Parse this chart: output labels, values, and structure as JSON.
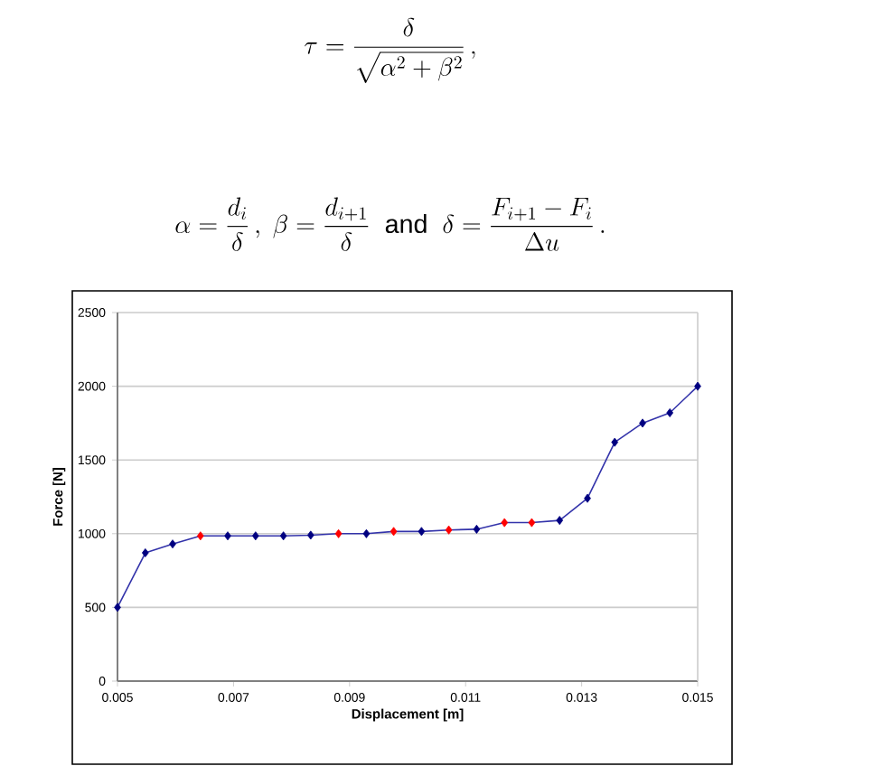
{
  "chart_data": {
    "type": "line",
    "xlabel": "Displacement [m]",
    "ylabel": "Force [N]",
    "x": [
      0.005,
      0.00548,
      0.00595,
      0.00643,
      0.0069,
      0.00738,
      0.00786,
      0.00833,
      0.00881,
      0.00929,
      0.00976,
      0.01024,
      0.01071,
      0.01119,
      0.01167,
      0.01214,
      0.01262,
      0.0131,
      0.01357,
      0.01405,
      0.01452,
      0.015
    ],
    "series": [
      {
        "color": "#3333aa",
        "values": [
          500,
          870,
          930,
          985,
          985,
          985,
          985,
          990,
          1000,
          1000,
          1015,
          1015,
          1025,
          1030,
          1075,
          1075,
          1090,
          1240,
          1620,
          1750,
          1820,
          2000
        ],
        "colors": [
          "#000080",
          "#000080",
          "#000080",
          "#ff0000",
          "#000080",
          "#000080",
          "#000080",
          "#000080",
          "#ff0000",
          "#000080",
          "#ff0000",
          "#000080",
          "#ff0000",
          "#000080",
          "#ff0000",
          "#ff0000",
          "#000080",
          "#000080",
          "#000080",
          "#000080",
          "#000080",
          "#000080"
        ]
      }
    ],
    "xlim": [
      0.005,
      0.015
    ],
    "xticks": [
      0.005,
      0.007,
      0.009,
      0.011,
      0.013,
      0.015
    ],
    "ylim": [
      0,
      2500
    ],
    "yticks": [
      0,
      500,
      1000,
      1500,
      2000,
      2500
    ],
    "grid": "y",
    "marker": "diamond",
    "annotations": [
      "\\tau = \\frac{\\delta}{\\sqrt{\\alpha^{2} + \\beta^{2}}}\\,,",
      "\\alpha = \\frac{d_{i}}{\\delta}\\,,\\ \\beta = \\frac{d_{i+1}}{\\delta}\\ \\text{ and }\\ \\delta = \\frac{F_{i+1} - F_{i}}{\\Delta u}\\,."
    ]
  }
}
